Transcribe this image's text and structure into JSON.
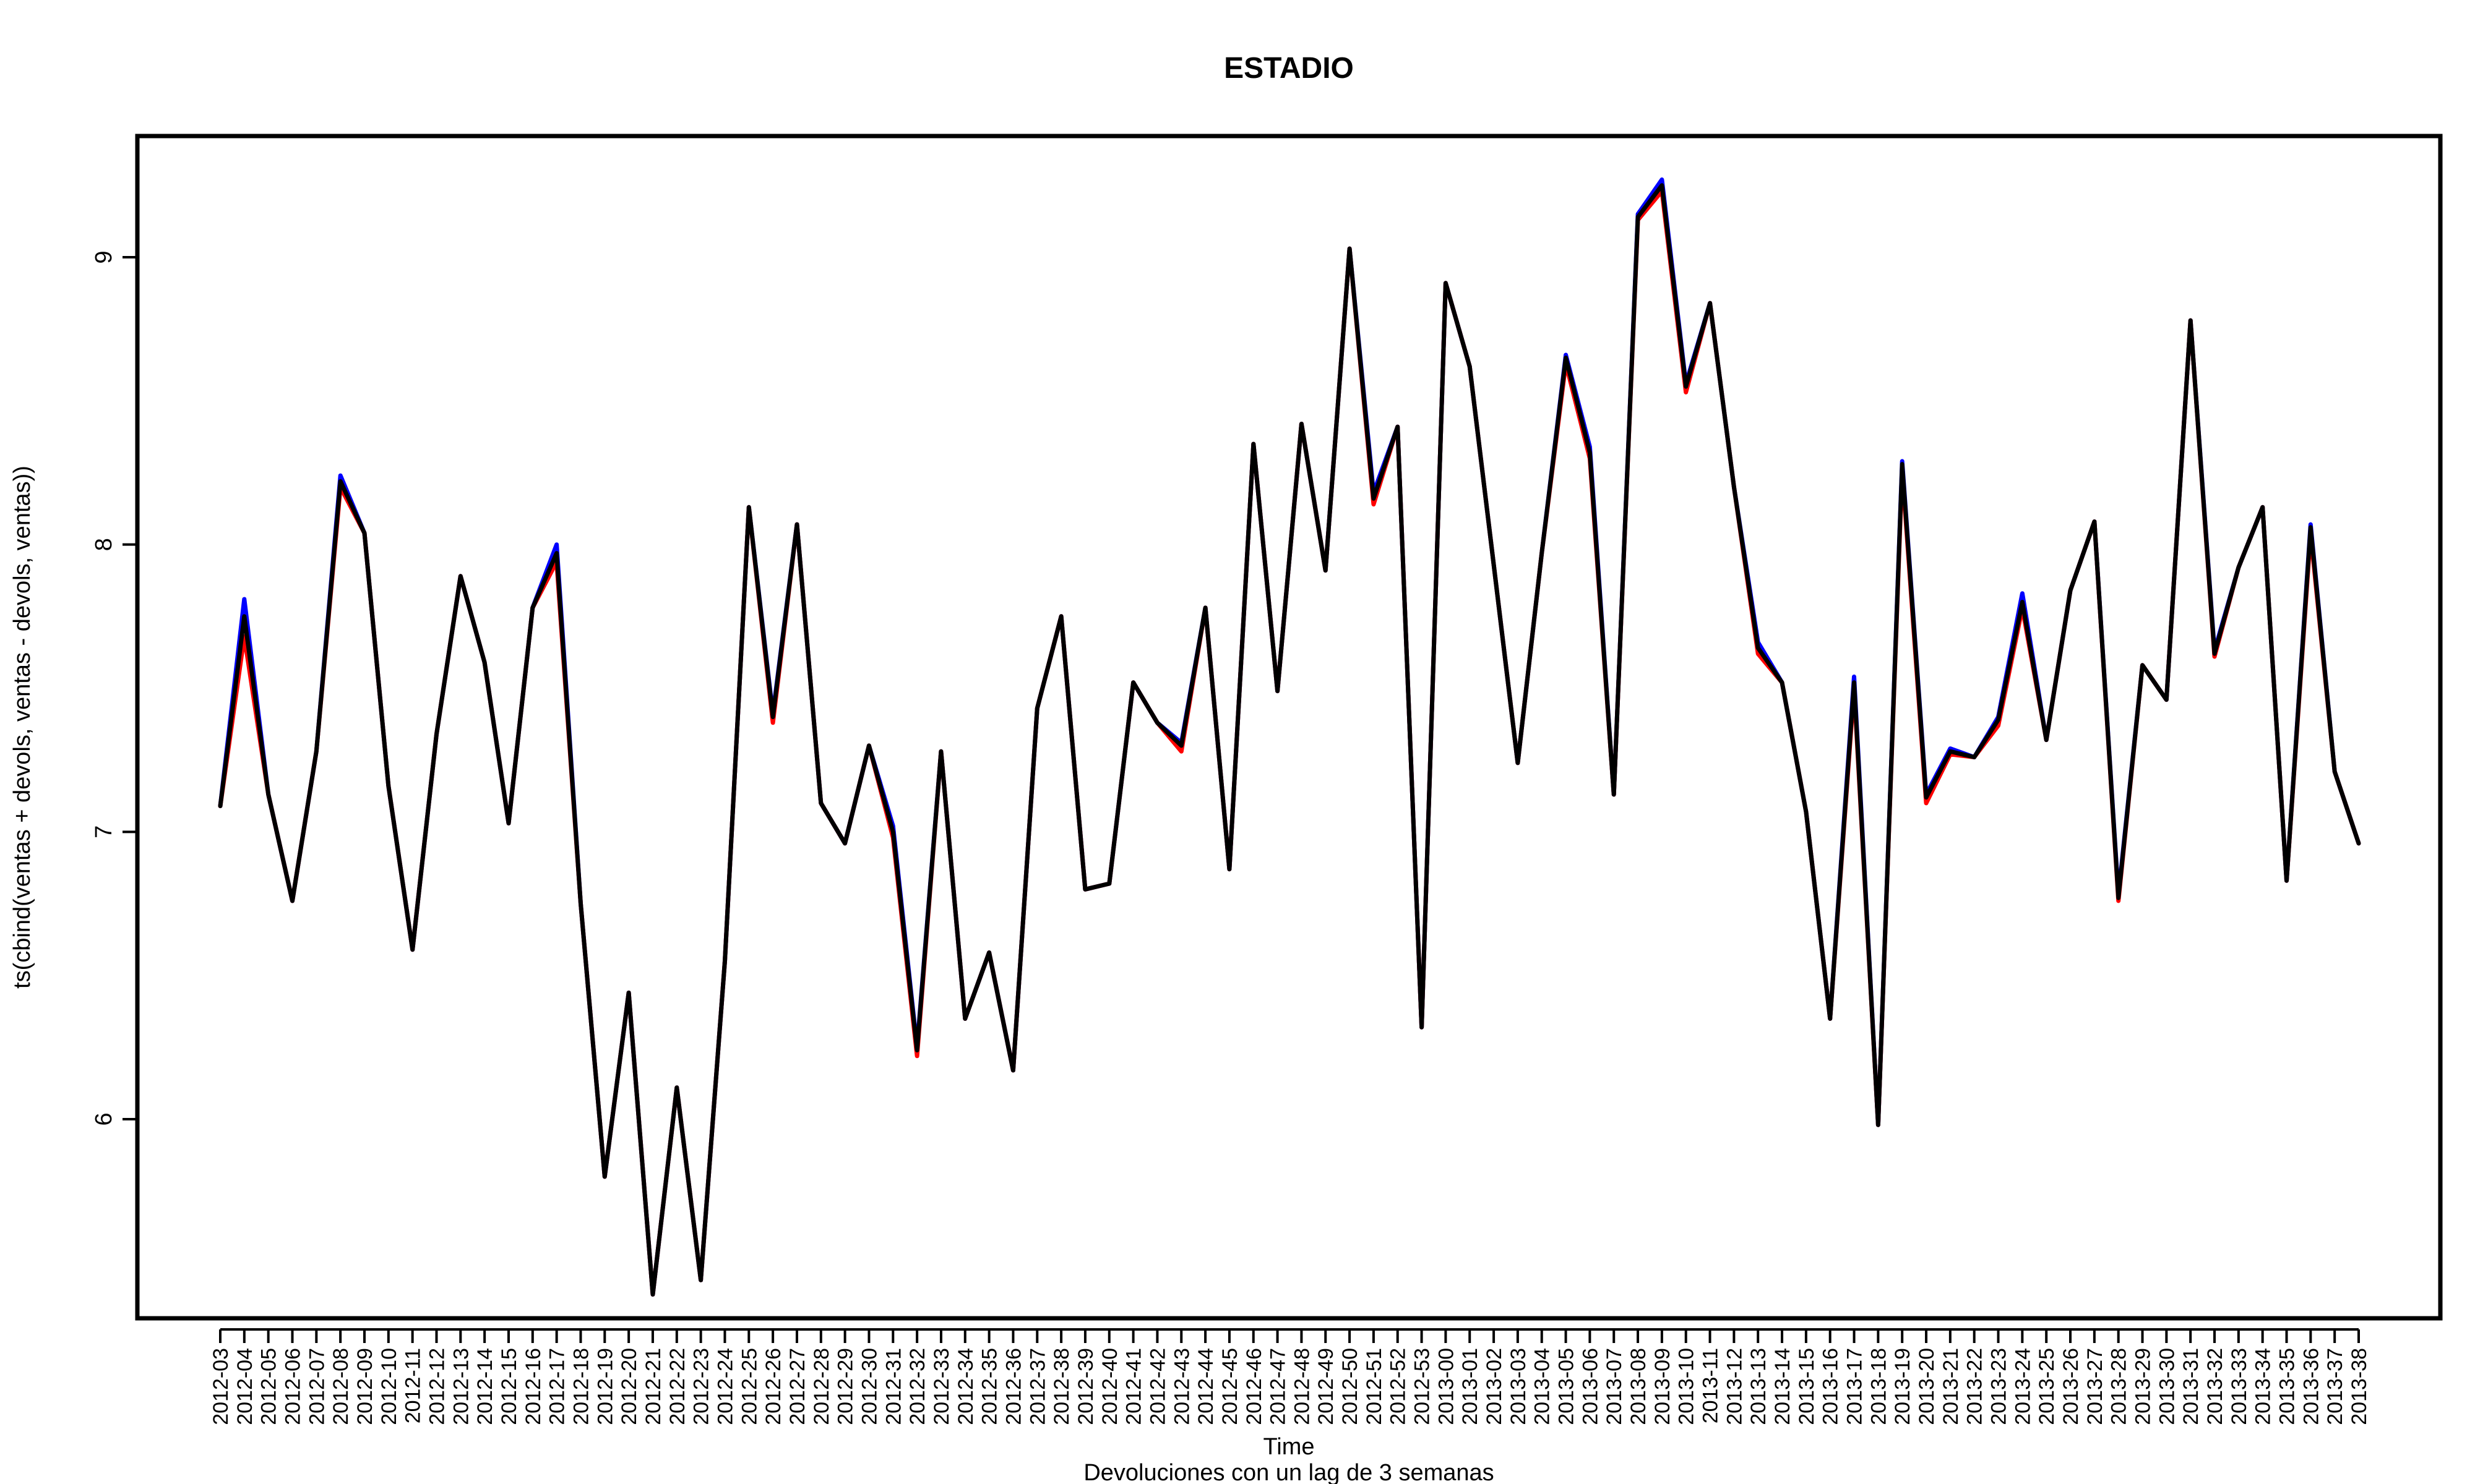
{
  "chart_data": {
    "type": "line",
    "title": "ESTADIO",
    "xlabel": "Time",
    "subtitle": "Devoluciones con un lag de 3 semanas",
    "ylabel": "ts(cbind(ventas + devols, ventas - devols, ventas))",
    "ylim": [
      5.25,
      9.45
    ],
    "yticks": [
      6,
      7,
      8,
      9
    ],
    "grid": false,
    "categories": [
      "2012-03",
      "2012-04",
      "2012-05",
      "2012-06",
      "2012-07",
      "2012-08",
      "2012-09",
      "2012-10",
      "2012-11",
      "2012-12",
      "2012-13",
      "2012-14",
      "2012-15",
      "2012-16",
      "2012-17",
      "2012-18",
      "2012-19",
      "2012-20",
      "2012-21",
      "2012-22",
      "2012-23",
      "2012-24",
      "2012-25",
      "2012-26",
      "2012-27",
      "2012-28",
      "2012-29",
      "2012-30",
      "2012-31",
      "2012-32",
      "2012-33",
      "2012-34",
      "2012-35",
      "2012-36",
      "2012-37",
      "2012-38",
      "2012-39",
      "2012-40",
      "2012-41",
      "2012-42",
      "2012-43",
      "2012-44",
      "2012-45",
      "2012-46",
      "2012-47",
      "2012-48",
      "2012-49",
      "2012-50",
      "2012-51",
      "2012-52",
      "2012-53",
      "2013-00",
      "2013-01",
      "2013-02",
      "2013-03",
      "2013-04",
      "2013-05",
      "2013-06",
      "2013-07",
      "2013-08",
      "2013-09",
      "2013-10",
      "2013-11",
      "2013-12",
      "2013-13",
      "2013-14",
      "2013-15",
      "2013-16",
      "2013-17",
      "2013-18",
      "2013-19",
      "2013-20",
      "2013-21",
      "2013-22",
      "2013-23",
      "2013-24",
      "2013-25",
      "2013-26",
      "2013-27",
      "2013-28",
      "2013-29",
      "2013-30",
      "2013-31",
      "2013-32",
      "2013-33",
      "2013-34",
      "2013-35",
      "2013-36",
      "2013-37",
      "2013-38"
    ],
    "series": [
      {
        "color": "#0000ff",
        "values": [
          7.09,
          7.81,
          7.13,
          6.76,
          7.28,
          8.24,
          8.04,
          7.16,
          6.59,
          7.34,
          7.89,
          7.59,
          7.03,
          7.78,
          8.0,
          6.75,
          5.8,
          6.44,
          5.39,
          6.11,
          5.44,
          6.55,
          8.13,
          7.41,
          8.07,
          7.1,
          6.96,
          7.3,
          7.02,
          6.25,
          7.28,
          6.35,
          6.58,
          6.17,
          7.43,
          7.75,
          6.8,
          6.82,
          7.52,
          7.38,
          7.31,
          7.78,
          6.87,
          8.35,
          7.49,
          8.42,
          7.91,
          9.03,
          8.18,
          8.41,
          6.32,
          8.91,
          8.62,
          7.93,
          7.24,
          7.97,
          8.66,
          8.34,
          7.13,
          9.15,
          9.27,
          8.56,
          8.84,
          8.2,
          7.66,
          7.52,
          7.07,
          6.35,
          7.54,
          5.98,
          8.29,
          7.13,
          7.29,
          7.26,
          7.4,
          7.83,
          7.32,
          7.84,
          8.08,
          6.78,
          7.58,
          7.46,
          8.78,
          7.63,
          7.92,
          8.13,
          6.83,
          8.07,
          7.21,
          6.96
        ]
      },
      {
        "color": "#ff0000",
        "values": [
          7.09,
          7.68,
          7.13,
          6.76,
          7.28,
          8.2,
          8.04,
          7.16,
          6.59,
          7.34,
          7.89,
          7.59,
          7.03,
          7.78,
          7.94,
          6.75,
          5.8,
          6.44,
          5.39,
          6.11,
          5.44,
          6.55,
          8.13,
          7.38,
          8.07,
          7.1,
          6.96,
          7.3,
          6.98,
          6.22,
          7.28,
          6.35,
          6.58,
          6.17,
          7.43,
          7.75,
          6.8,
          6.82,
          7.52,
          7.38,
          7.28,
          7.78,
          6.87,
          8.35,
          7.49,
          8.42,
          7.91,
          9.03,
          8.14,
          8.41,
          6.32,
          8.91,
          8.62,
          7.93,
          7.24,
          7.97,
          8.63,
          8.3,
          7.13,
          9.13,
          9.23,
          8.53,
          8.84,
          8.2,
          7.62,
          7.52,
          7.07,
          6.35,
          7.5,
          5.98,
          8.26,
          7.1,
          7.27,
          7.26,
          7.37,
          7.78,
          7.32,
          7.84,
          8.08,
          6.76,
          7.58,
          7.46,
          8.78,
          7.61,
          7.92,
          8.13,
          6.83,
          8.04,
          7.21,
          6.96
        ]
      },
      {
        "color": "#000000",
        "values": [
          7.09,
          7.75,
          7.13,
          6.76,
          7.28,
          8.22,
          8.04,
          7.16,
          6.59,
          7.34,
          7.89,
          7.59,
          7.03,
          7.78,
          7.97,
          6.75,
          5.8,
          6.44,
          5.39,
          6.11,
          5.44,
          6.55,
          8.13,
          7.4,
          8.07,
          7.1,
          6.96,
          7.3,
          7.0,
          6.24,
          7.28,
          6.35,
          6.58,
          6.17,
          7.43,
          7.75,
          6.8,
          6.82,
          7.52,
          7.38,
          7.3,
          7.78,
          6.87,
          8.35,
          7.49,
          8.42,
          7.91,
          9.03,
          8.16,
          8.41,
          6.32,
          8.91,
          8.62,
          7.93,
          7.24,
          7.97,
          8.65,
          8.32,
          7.13,
          9.14,
          9.25,
          8.55,
          8.84,
          8.2,
          7.64,
          7.52,
          7.07,
          6.35,
          7.52,
          5.98,
          8.28,
          7.12,
          7.28,
          7.26,
          7.39,
          7.8,
          7.32,
          7.84,
          8.08,
          6.77,
          7.58,
          7.46,
          8.78,
          7.62,
          7.92,
          8.13,
          6.83,
          8.06,
          7.21,
          6.96
        ]
      }
    ]
  }
}
